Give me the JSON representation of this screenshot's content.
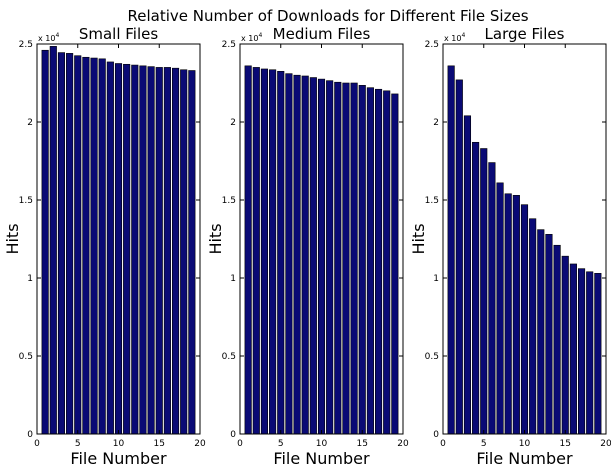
{
  "figure": {
    "suptitle": "Relative Number of Downloads for Different File Sizes"
  },
  "chart_data": [
    {
      "type": "bar",
      "title": "Small Files",
      "xlabel": "File Number",
      "ylabel": "Hits",
      "x": [
        1,
        2,
        3,
        4,
        5,
        6,
        7,
        8,
        9,
        10,
        11,
        12,
        13,
        14,
        15,
        16,
        17,
        18,
        19
      ],
      "values": [
        24600,
        24850,
        24450,
        24400,
        24250,
        24150,
        24100,
        24050,
        23850,
        23750,
        23700,
        23650,
        23600,
        23550,
        23500,
        23500,
        23450,
        23350,
        23300
      ],
      "xlim": [
        0,
        20
      ],
      "ylim": [
        0,
        25000
      ],
      "xticks": [
        0,
        5,
        10,
        15,
        20
      ],
      "yticks": [
        0,
        5000,
        10000,
        15000,
        20000,
        25000
      ],
      "ytick_labels": [
        "0",
        "0.5",
        "1",
        "1.5",
        "2",
        "2.5"
      ],
      "y_multiplier": {
        "base": "x 10",
        "exp": "4"
      },
      "grid": false,
      "bar_color": "#0a0a75"
    },
    {
      "type": "bar",
      "title": "Medium Files",
      "xlabel": "File Number",
      "ylabel": "Hits",
      "x": [
        1,
        2,
        3,
        4,
        5,
        6,
        7,
        8,
        9,
        10,
        11,
        12,
        13,
        14,
        15,
        16,
        17,
        18,
        19
      ],
      "values": [
        23600,
        23500,
        23400,
        23350,
        23250,
        23100,
        23000,
        22950,
        22850,
        22750,
        22650,
        22550,
        22500,
        22500,
        22350,
        22200,
        22100,
        22000,
        21800
      ],
      "xlim": [
        0,
        20
      ],
      "ylim": [
        0,
        25000
      ],
      "xticks": [
        0,
        5,
        10,
        15,
        20
      ],
      "yticks": [
        0,
        5000,
        10000,
        15000,
        20000,
        25000
      ],
      "ytick_labels": [
        "0",
        "0.5",
        "1",
        "1.5",
        "2",
        "2.5"
      ],
      "y_multiplier": {
        "base": "x 10",
        "exp": "4"
      },
      "grid": false,
      "bar_color": "#0a0a75"
    },
    {
      "type": "bar",
      "title": "Large Files",
      "xlabel": "File Number",
      "ylabel": "Hits",
      "x": [
        1,
        2,
        3,
        4,
        5,
        6,
        7,
        8,
        9,
        10,
        11,
        12,
        13,
        14,
        15,
        16,
        17,
        18,
        19
      ],
      "values": [
        23600,
        22700,
        20400,
        18700,
        18300,
        17400,
        16100,
        15400,
        15300,
        14700,
        13800,
        13100,
        12800,
        12100,
        11400,
        10900,
        10600,
        10400,
        10300
      ],
      "xlim": [
        0,
        20
      ],
      "ylim": [
        0,
        25000
      ],
      "xticks": [
        0,
        5,
        10,
        15,
        20
      ],
      "yticks": [
        0,
        5000,
        10000,
        15000,
        20000,
        25000
      ],
      "ytick_labels": [
        "0",
        "0.5",
        "1",
        "1.5",
        "2",
        "2.5"
      ],
      "y_multiplier": {
        "base": "x 10",
        "exp": "4"
      },
      "grid": false,
      "bar_color": "#0a0a75"
    }
  ]
}
